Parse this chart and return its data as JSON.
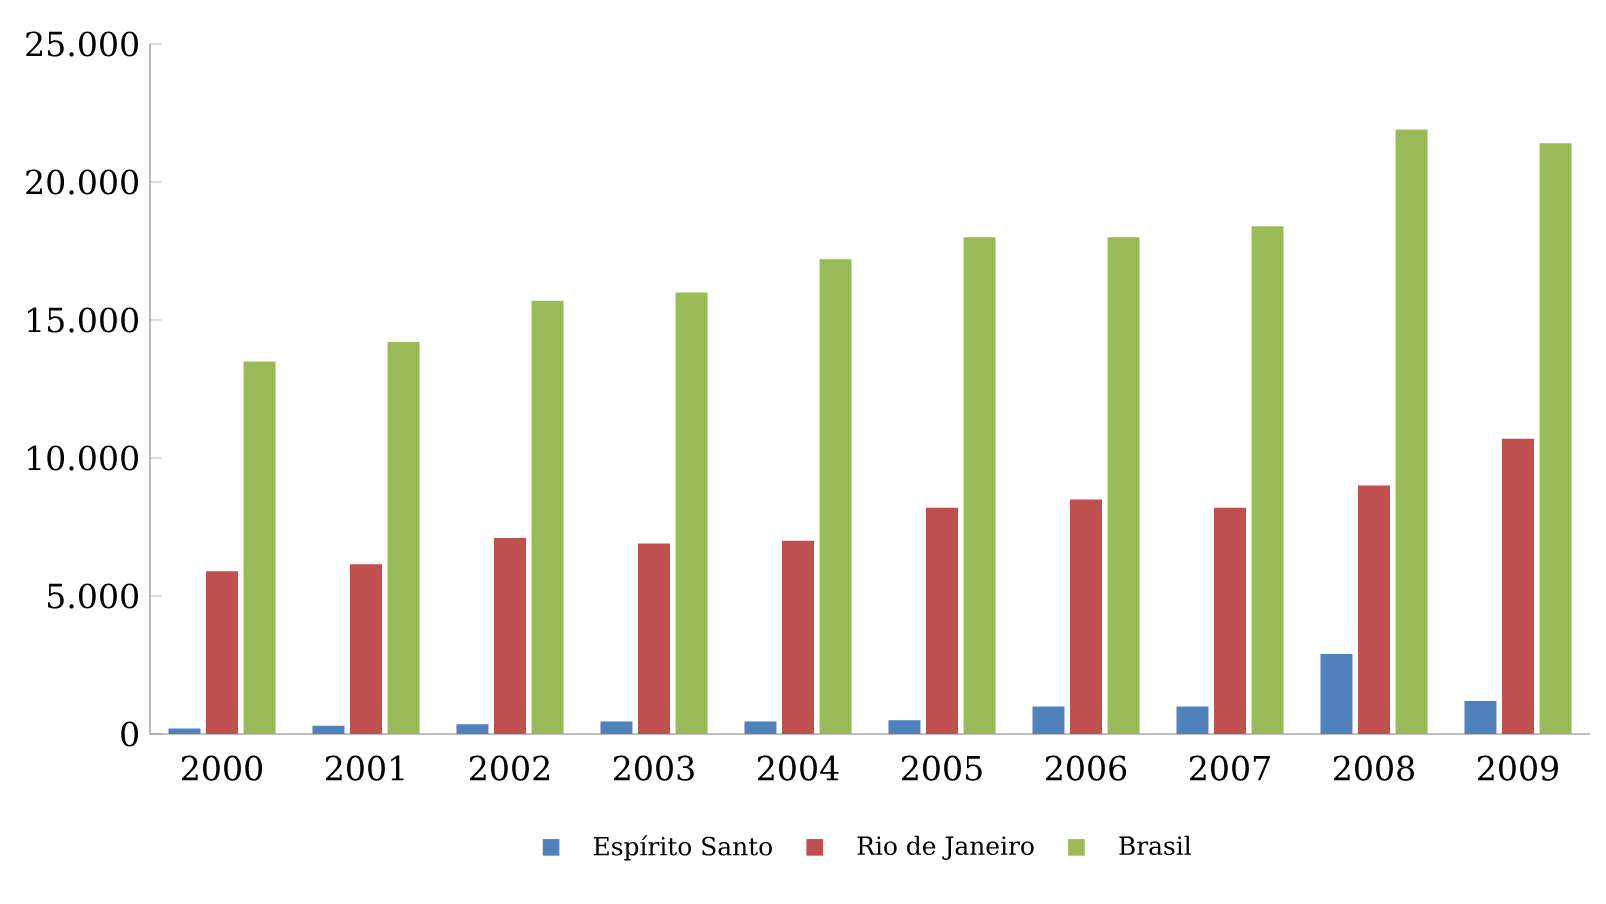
{
  "chart_data": {
    "type": "bar",
    "categories": [
      "2000",
      "2001",
      "2002",
      "2003",
      "2004",
      "2005",
      "2006",
      "2007",
      "2008",
      "2009"
    ],
    "series": [
      {
        "name": "Espírito Santo",
        "color": "#4f81bd",
        "values": [
          200,
          300,
          350,
          450,
          450,
          500,
          1000,
          1000,
          2900,
          1200
        ]
      },
      {
        "name": "Rio de Janeiro",
        "color": "#c0504d",
        "values": [
          5900,
          6150,
          7100,
          6900,
          7000,
          8200,
          8500,
          8200,
          9000,
          10700
        ]
      },
      {
        "name": "Brasil",
        "color": "#9bbb59",
        "values": [
          13500,
          14200,
          15700,
          16000,
          17200,
          18000,
          18000,
          18400,
          21900,
          21400
        ]
      }
    ],
    "ylim": [
      0,
      25000
    ],
    "yticks": [
      {
        "value": 0,
        "label": "0"
      },
      {
        "value": 5000,
        "label": "5.000"
      },
      {
        "value": 10000,
        "label": "10.000"
      },
      {
        "value": 15000,
        "label": "15.000"
      },
      {
        "value": 20000,
        "label": "20.000"
      },
      {
        "value": 25000,
        "label": "25.000"
      }
    ],
    "legend": "bottom",
    "grid": false
  }
}
